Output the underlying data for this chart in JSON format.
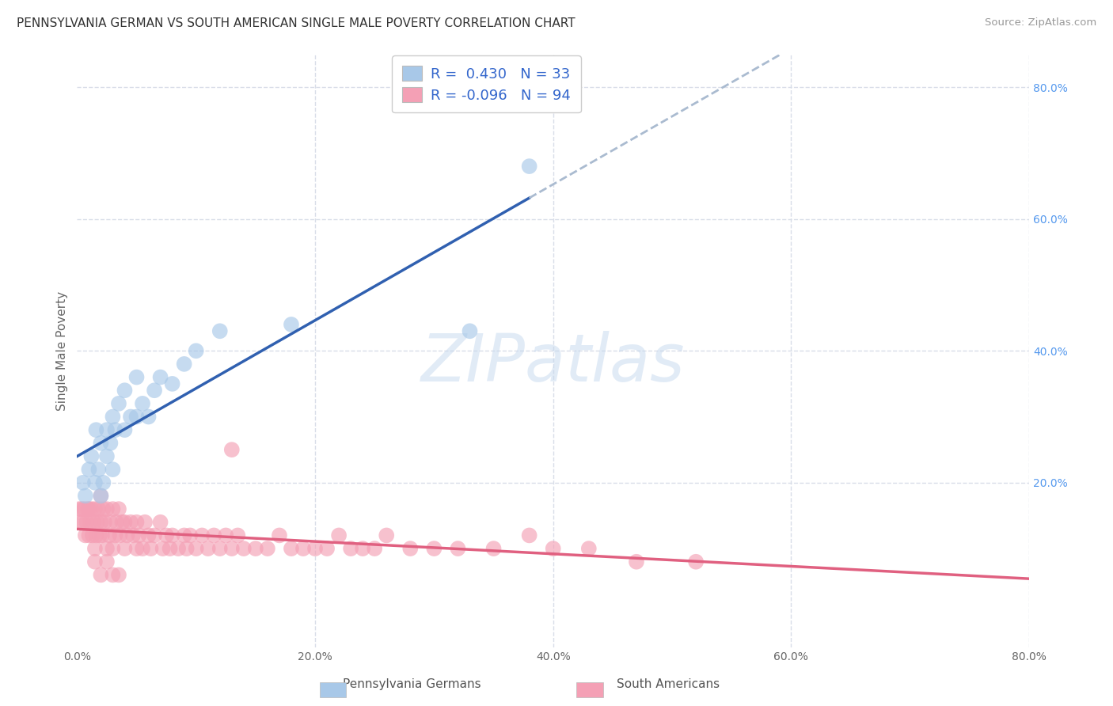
{
  "title": "PENNSYLVANIA GERMAN VS SOUTH AMERICAN SINGLE MALE POVERTY CORRELATION CHART",
  "source": "Source: ZipAtlas.com",
  "ylabel": "Single Male Poverty",
  "legend_label1": "Pennsylvania Germans",
  "legend_label2": "South Americans",
  "r1": 0.43,
  "n1": 33,
  "r2": -0.096,
  "n2": 94,
  "color_blue": "#a8c8e8",
  "color_pink": "#f4a0b5",
  "line_blue": "#3060b0",
  "line_pink": "#e06080",
  "line_dash": "#aabbd0",
  "background": "#ffffff",
  "grid_color": "#d8dde8",
  "blue_x": [
    0.005,
    0.007,
    0.01,
    0.012,
    0.015,
    0.016,
    0.018,
    0.02,
    0.02,
    0.022,
    0.025,
    0.025,
    0.028,
    0.03,
    0.03,
    0.032,
    0.035,
    0.04,
    0.04,
    0.045,
    0.05,
    0.05,
    0.055,
    0.06,
    0.065,
    0.07,
    0.08,
    0.09,
    0.1,
    0.12,
    0.18,
    0.33,
    0.38
  ],
  "blue_y": [
    0.2,
    0.18,
    0.22,
    0.24,
    0.2,
    0.28,
    0.22,
    0.18,
    0.26,
    0.2,
    0.28,
    0.24,
    0.26,
    0.22,
    0.3,
    0.28,
    0.32,
    0.28,
    0.34,
    0.3,
    0.3,
    0.36,
    0.32,
    0.3,
    0.34,
    0.36,
    0.35,
    0.38,
    0.4,
    0.43,
    0.44,
    0.43,
    0.68
  ],
  "pink_x": [
    0.002,
    0.003,
    0.004,
    0.005,
    0.006,
    0.007,
    0.008,
    0.009,
    0.01,
    0.01,
    0.011,
    0.012,
    0.013,
    0.014,
    0.015,
    0.015,
    0.016,
    0.017,
    0.018,
    0.019,
    0.02,
    0.02,
    0.021,
    0.022,
    0.023,
    0.025,
    0.025,
    0.027,
    0.028,
    0.03,
    0.03,
    0.032,
    0.033,
    0.035,
    0.036,
    0.038,
    0.04,
    0.04,
    0.042,
    0.045,
    0.047,
    0.05,
    0.05,
    0.052,
    0.055,
    0.057,
    0.06,
    0.062,
    0.065,
    0.07,
    0.072,
    0.075,
    0.078,
    0.08,
    0.085,
    0.09,
    0.092,
    0.095,
    0.1,
    0.105,
    0.11,
    0.115,
    0.12,
    0.125,
    0.13,
    0.135,
    0.14,
    0.15,
    0.16,
    0.17,
    0.18,
    0.19,
    0.2,
    0.21,
    0.22,
    0.23,
    0.24,
    0.25,
    0.26,
    0.28,
    0.3,
    0.32,
    0.35,
    0.38,
    0.4,
    0.43,
    0.47,
    0.52,
    0.13,
    0.015,
    0.02,
    0.025,
    0.03,
    0.035
  ],
  "pink_y": [
    0.16,
    0.14,
    0.16,
    0.14,
    0.16,
    0.12,
    0.14,
    0.16,
    0.12,
    0.16,
    0.14,
    0.16,
    0.12,
    0.14,
    0.1,
    0.16,
    0.12,
    0.14,
    0.16,
    0.12,
    0.14,
    0.18,
    0.12,
    0.16,
    0.14,
    0.1,
    0.16,
    0.12,
    0.14,
    0.1,
    0.16,
    0.12,
    0.14,
    0.16,
    0.12,
    0.14,
    0.1,
    0.14,
    0.12,
    0.14,
    0.12,
    0.1,
    0.14,
    0.12,
    0.1,
    0.14,
    0.12,
    0.1,
    0.12,
    0.14,
    0.1,
    0.12,
    0.1,
    0.12,
    0.1,
    0.12,
    0.1,
    0.12,
    0.1,
    0.12,
    0.1,
    0.12,
    0.1,
    0.12,
    0.1,
    0.12,
    0.1,
    0.1,
    0.1,
    0.12,
    0.1,
    0.1,
    0.1,
    0.1,
    0.12,
    0.1,
    0.1,
    0.1,
    0.12,
    0.1,
    0.1,
    0.1,
    0.1,
    0.12,
    0.1,
    0.1,
    0.08,
    0.08,
    0.25,
    0.08,
    0.06,
    0.08,
    0.06,
    0.06
  ]
}
